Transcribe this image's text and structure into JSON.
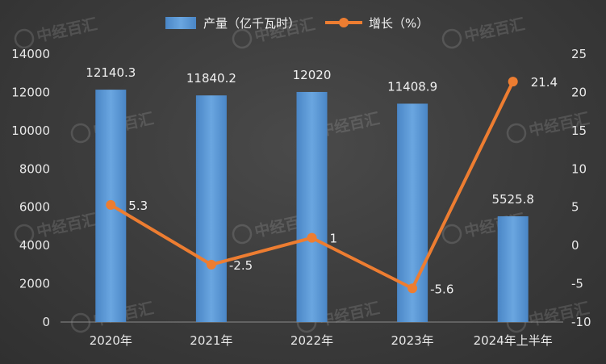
{
  "chart_data": {
    "type": "bar+line",
    "categories": [
      "2020年",
      "2021年",
      "2022年",
      "2023年",
      "2024年上半年"
    ],
    "series": [
      {
        "name": "产量（亿千瓦时）",
        "type": "bar",
        "axis": "left",
        "values": [
          12140.3,
          11840.2,
          12020,
          11408.9,
          5525.8
        ],
        "labels": [
          "12140.3",
          "11840.2",
          "12020",
          "11408.9",
          "5525.8"
        ]
      },
      {
        "name": "增长（%）",
        "type": "line",
        "axis": "right",
        "values": [
          5.3,
          -2.5,
          1,
          -5.6,
          21.4
        ],
        "labels": [
          "5.3",
          "-2.5",
          "1",
          "-5.6",
          "21.4"
        ]
      }
    ],
    "y_left": {
      "min": 0,
      "max": 14000,
      "step": 2000
    },
    "y_right": {
      "min": -10,
      "max": 25,
      "step": 5
    },
    "grid": false,
    "legend": "top-center",
    "colors": {
      "bar": "#5b9bd5",
      "line": "#ed7d31"
    }
  },
  "watermark": "中经百汇"
}
